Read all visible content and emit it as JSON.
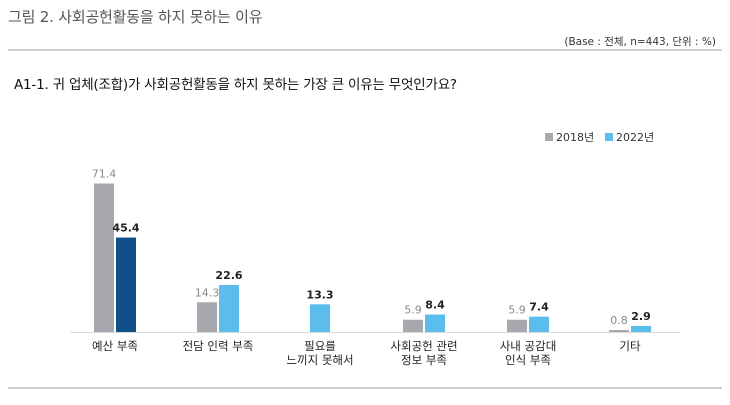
{
  "figure_title": "그림 2. 사회공헌활동을 하지 못하는 이유",
  "base_note": "(Base : 전체, n=443, 단위 : %)",
  "question": "A1-1. 귀 업체(조합)가 사회공헌활동을 하지 못하는 가장 큰 이유는 무엇인가요?",
  "colors": {
    "gray": "#a6a8ad",
    "highlight_2018": "#a6a8ad",
    "light_blue": "#5bbdec",
    "dark_blue": "#0f5088"
  },
  "chart_data": {
    "type": "bar",
    "categories": [
      [
        "예산 부족"
      ],
      [
        "전담 인력 부족"
      ],
      [
        "필요를",
        "느끼지 못해서"
      ],
      [
        "사회공헌 관련",
        "정보 부족"
      ],
      [
        "사내 공감대",
        "인식 부족"
      ],
      [
        "기타"
      ]
    ],
    "series": [
      {
        "name": "2018년",
        "values": [
          71.4,
          14.3,
          null,
          5.9,
          5.9,
          0.8
        ]
      },
      {
        "name": "2022년",
        "values": [
          45.4,
          22.6,
          13.3,
          8.4,
          7.4,
          2.9
        ]
      }
    ],
    "ylim": [
      0,
      80
    ],
    "grid": false,
    "legend_position": "top-right",
    "highlight": "첫 번째 범주의 2022년 막대는 진한 파란색"
  }
}
